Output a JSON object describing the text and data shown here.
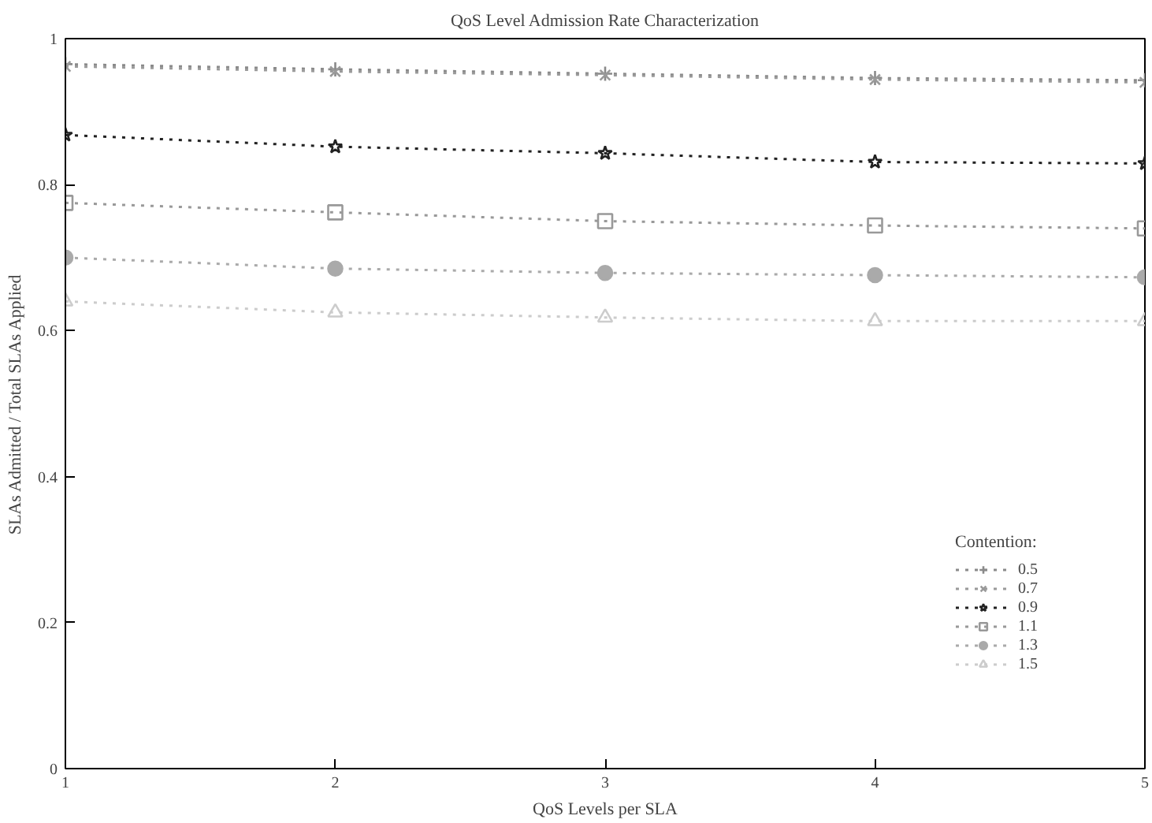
{
  "chart_data": {
    "type": "line",
    "title": "QoS Level Admission Rate Characterization",
    "xlabel": "QoS Levels per SLA",
    "ylabel": "SLAs Admitted / Total SLAs Applied",
    "legend_title": "Contention:",
    "x": [
      1,
      2,
      3,
      4,
      5
    ],
    "xlim": [
      1,
      5
    ],
    "xticks": [
      1,
      2,
      3,
      4,
      5
    ],
    "ylim": [
      0,
      1
    ],
    "yticks": [
      0,
      0.2,
      0.4,
      0.6,
      0.8,
      1
    ],
    "series": [
      {
        "name": "0.5",
        "color": "#8a8a8a",
        "marker": "cross",
        "values": [
          0.965,
          0.958,
          0.952,
          0.946,
          0.943
        ]
      },
      {
        "name": "0.7",
        "color": "#9a9a9a",
        "marker": "x",
        "values": [
          0.962,
          0.955,
          0.95,
          0.944,
          0.94
        ]
      },
      {
        "name": "0.9",
        "color": "#222222",
        "marker": "star",
        "values": [
          0.868,
          0.852,
          0.843,
          0.831,
          0.829
        ]
      },
      {
        "name": "1.1",
        "color": "#999999",
        "marker": "square",
        "values": [
          0.775,
          0.762,
          0.75,
          0.744,
          0.74
        ]
      },
      {
        "name": "1.3",
        "color": "#aaaaaa",
        "marker": "circle",
        "values": [
          0.7,
          0.685,
          0.679,
          0.676,
          0.673
        ]
      },
      {
        "name": "1.5",
        "color": "#cccccc",
        "marker": "triangle",
        "values": [
          0.64,
          0.625,
          0.618,
          0.613,
          0.613
        ]
      }
    ],
    "line_style": "dotted",
    "grid": false,
    "legend": "bottom right"
  }
}
